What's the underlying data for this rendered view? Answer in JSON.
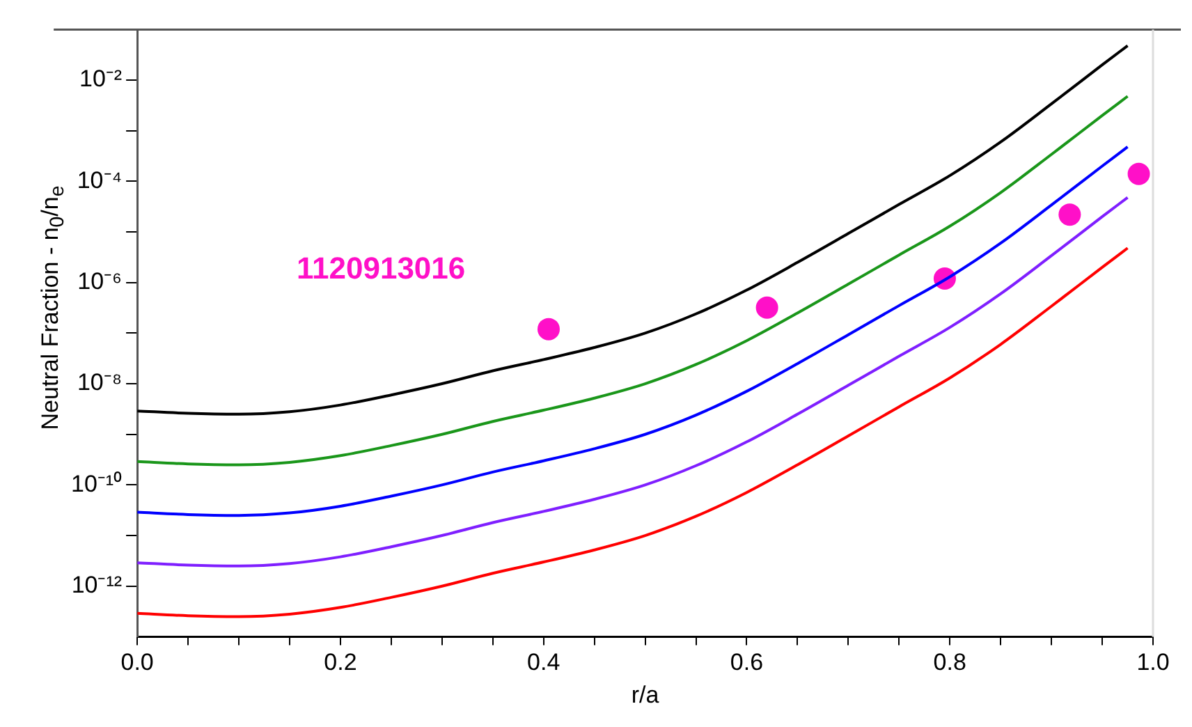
{
  "chart_data": {
    "type": "line",
    "xlabel": "r/a",
    "ylabel": "Neutral Fraction - n$_{0}$/n$_{e}$",
    "annotations": [
      "1120913016"
    ],
    "log": "y",
    "grid": false,
    "legend": false,
    "xlim": [
      0,
      1
    ],
    "xticks": [
      {
        "value": 0,
        "label": "0.0"
      },
      {
        "value": 0.05,
        "label": null
      },
      {
        "value": 0.1,
        "label": null
      },
      {
        "value": 0.15,
        "label": null
      },
      {
        "value": 0.2,
        "label": "0.2"
      },
      {
        "value": 0.25,
        "label": null
      },
      {
        "value": 0.3,
        "label": null
      },
      {
        "value": 0.35,
        "label": null
      },
      {
        "value": 0.4,
        "label": "0.4"
      },
      {
        "value": 0.45,
        "label": null
      },
      {
        "value": 0.5,
        "label": null
      },
      {
        "value": 0.55,
        "label": null
      },
      {
        "value": 0.6,
        "label": "0.6"
      },
      {
        "value": 0.65,
        "label": null
      },
      {
        "value": 0.7,
        "label": null
      },
      {
        "value": 0.75,
        "label": null
      },
      {
        "value": 0.8,
        "label": "0.8"
      },
      {
        "value": 0.85,
        "label": null
      },
      {
        "value": 0.9,
        "label": null
      },
      {
        "value": 0.95,
        "label": null
      },
      {
        "value": 1,
        "label": "1.0"
      }
    ],
    "ylim": [
      1e-13,
      0.1
    ],
    "yticks": [
      {
        "value": 1e-12,
        "label": "10⁻¹²"
      },
      {
        "value": 1e-11,
        "label": null
      },
      {
        "value": 1e-10,
        "label": "10⁻¹⁰"
      },
      {
        "value": 1e-09,
        "label": null
      },
      {
        "value": 1e-08,
        "label": "10⁻⁸"
      },
      {
        "value": 1e-07,
        "label": null
      },
      {
        "value": 1e-06,
        "label": "10⁻⁶"
      },
      {
        "value": 1e-05,
        "label": null
      },
      {
        "value": 0.0001,
        "label": "10⁻⁴"
      },
      {
        "value": 0.001,
        "label": null
      },
      {
        "value": 0.01,
        "label": "10⁻²"
      }
    ],
    "series": [
      {
        "marker": "none",
        "color": "#000000",
        "x": [
          0,
          0.05,
          0.1,
          0.15,
          0.2,
          0.25,
          0.3,
          0.35,
          0.4,
          0.45,
          0.5,
          0.55,
          0.6,
          0.65,
          0.7,
          0.75,
          0.8,
          0.85,
          0.9,
          0.95,
          0.975
        ],
        "values": [
          2.9e-09,
          2.6e-09,
          2.5e-09,
          2.8e-09,
          3.8e-09,
          6e-09,
          1e-08,
          1.8e-08,
          3e-08,
          5.2e-08,
          1e-07,
          2.4e-07,
          7.1e-07,
          2.5e-06,
          9.3e-06,
          3.5e-05,
          0.00013,
          0.0006,
          0.0034,
          0.02,
          0.048
        ]
      },
      {
        "marker": "none",
        "color": "#1a961a",
        "x": [
          0,
          0.05,
          0.1,
          0.15,
          0.2,
          0.25,
          0.3,
          0.35,
          0.4,
          0.45,
          0.5,
          0.55,
          0.6,
          0.65,
          0.7,
          0.75,
          0.8,
          0.85,
          0.9,
          0.95,
          0.975
        ],
        "values": [
          2.9e-10,
          2.6e-10,
          2.5e-10,
          2.8e-10,
          3.8e-10,
          6e-10,
          1e-09,
          1.8e-09,
          3e-09,
          5.2e-09,
          1e-08,
          2.4e-08,
          7.1e-08,
          2.5e-07,
          9.3e-07,
          3.5e-06,
          1.3e-05,
          6e-05,
          0.00034,
          0.002,
          0.0048
        ]
      },
      {
        "marker": "none",
        "color": "#0000ff",
        "x": [
          0,
          0.05,
          0.1,
          0.15,
          0.2,
          0.25,
          0.3,
          0.35,
          0.4,
          0.45,
          0.5,
          0.55,
          0.6,
          0.65,
          0.7,
          0.75,
          0.8,
          0.85,
          0.9,
          0.95,
          0.975
        ],
        "values": [
          2.9e-11,
          2.6e-11,
          2.5e-11,
          2.8e-11,
          3.8e-11,
          6e-11,
          1e-10,
          1.8e-10,
          3e-10,
          5.2e-10,
          1e-09,
          2.4e-09,
          7.1e-09,
          2.5e-08,
          9.3e-08,
          3.5e-07,
          1.3e-06,
          6e-06,
          3.4e-05,
          0.0002,
          0.00048
        ]
      },
      {
        "marker": "none",
        "color": "#7f1fff",
        "x": [
          0,
          0.05,
          0.1,
          0.15,
          0.2,
          0.25,
          0.3,
          0.35,
          0.4,
          0.45,
          0.5,
          0.55,
          0.6,
          0.65,
          0.7,
          0.75,
          0.8,
          0.85,
          0.9,
          0.95,
          0.975
        ],
        "values": [
          2.9e-12,
          2.6e-12,
          2.5e-12,
          2.8e-12,
          3.8e-12,
          6e-12,
          1e-11,
          1.8e-11,
          3e-11,
          5.2e-11,
          1e-10,
          2.4e-10,
          7.1e-10,
          2.5e-09,
          9.3e-09,
          3.5e-08,
          1.3e-07,
          6e-07,
          3.4e-06,
          2e-05,
          4.8e-05
        ]
      },
      {
        "marker": "none",
        "color": "#ff0000",
        "x": [
          0,
          0.05,
          0.1,
          0.15,
          0.2,
          0.25,
          0.3,
          0.35,
          0.4,
          0.45,
          0.5,
          0.55,
          0.6,
          0.65,
          0.7,
          0.75,
          0.8,
          0.85,
          0.9,
          0.95,
          0.975
        ],
        "values": [
          2.9e-13,
          2.6e-13,
          2.5e-13,
          2.8e-13,
          3.8e-13,
          6e-13,
          1e-12,
          1.8e-12,
          3e-12,
          5.2e-12,
          1e-11,
          2.4e-11,
          7.1e-11,
          2.5e-10,
          9.3e-10,
          3.5e-09,
          1.3e-08,
          6e-08,
          3.4e-07,
          2e-06,
          4.8e-06
        ]
      },
      {
        "type": "scatter",
        "marker": "circle",
        "color": "#ff10c8",
        "x": [
          0.405,
          0.62,
          0.795,
          0.918,
          0.986
        ],
        "values": [
          1.2e-07,
          3.2e-07,
          1.2e-06,
          2.2e-05,
          0.00014
        ]
      }
    ]
  }
}
